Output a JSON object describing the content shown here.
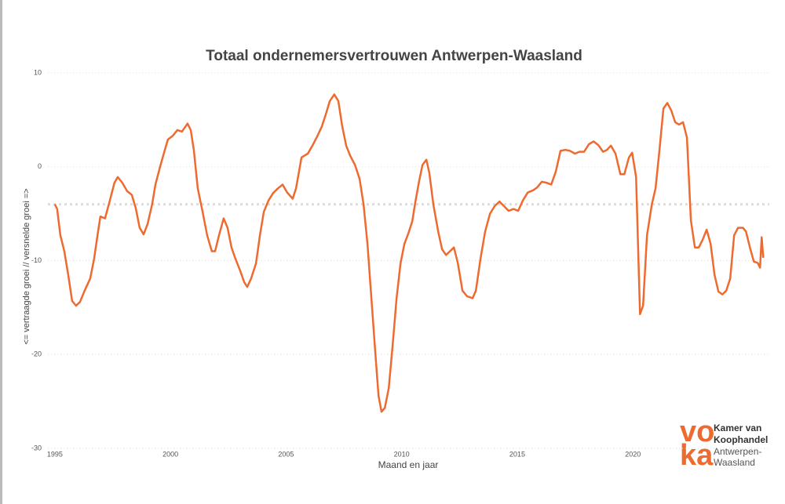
{
  "chart_data": {
    "type": "line",
    "title": "Totaal ondernemersvertrouwen Antwerpen-Waasland",
    "xlabel": "Maand en jaar",
    "ylabel": "<= vertraagde groei // versnelde groei =>",
    "x": [
      1995.0,
      1995.1,
      1995.24,
      1995.41,
      1995.58,
      1995.75,
      1995.92,
      1996.09,
      1996.29,
      1996.53,
      1996.7,
      1996.87,
      1996.97,
      1997.17,
      1997.38,
      1997.58,
      1997.72,
      1997.92,
      1998.13,
      1998.33,
      1998.5,
      1998.67,
      1998.84,
      1999.01,
      1999.21,
      1999.35,
      1999.55,
      1999.76,
      1999.89,
      2000.1,
      2000.3,
      2000.5,
      2000.74,
      2000.88,
      2001.01,
      2001.18,
      2001.39,
      2001.59,
      2001.79,
      2001.93,
      2002.1,
      2002.3,
      2002.47,
      2002.64,
      2002.81,
      2003.02,
      2003.19,
      2003.32,
      2003.49,
      2003.7,
      2003.87,
      2004.04,
      2004.24,
      2004.44,
      2004.65,
      2004.85,
      2005.05,
      2005.29,
      2005.43,
      2005.67,
      2005.94,
      2006.14,
      2006.35,
      2006.55,
      2006.72,
      2006.89,
      2007.09,
      2007.26,
      2007.43,
      2007.6,
      2007.77,
      2007.98,
      2008.18,
      2008.35,
      2008.52,
      2008.69,
      2008.86,
      2009.0,
      2009.13,
      2009.27,
      2009.44,
      2009.61,
      2009.78,
      2009.95,
      2010.12,
      2010.29,
      2010.46,
      2010.59,
      2010.76,
      2010.9,
      2011.07,
      2011.2,
      2011.37,
      2011.58,
      2011.75,
      2011.92,
      2012.09,
      2012.26,
      2012.43,
      2012.63,
      2012.83,
      2013.07,
      2013.21,
      2013.41,
      2013.61,
      2013.82,
      2014.02,
      2014.23,
      2014.43,
      2014.63,
      2014.84,
      2015.04,
      2015.24,
      2015.45,
      2015.69,
      2015.86,
      2016.06,
      2016.26,
      2016.47,
      2016.67,
      2016.87,
      2017.08,
      2017.28,
      2017.49,
      2017.69,
      2017.89,
      2018.1,
      2018.3,
      2018.51,
      2018.71,
      2018.88,
      2019.05,
      2019.25,
      2019.46,
      2019.63,
      2019.83,
      2019.97,
      2020.14,
      2020.31,
      2020.44,
      2020.61,
      2020.82,
      2020.98,
      2021.15,
      2021.32,
      2021.49,
      2021.66,
      2021.83,
      2022.0,
      2022.17,
      2022.34,
      2022.51,
      2022.68,
      2022.85,
      2023.02,
      2023.19,
      2023.36,
      2023.53,
      2023.7,
      2023.87,
      2024.04,
      2024.21,
      2024.38,
      2024.55,
      2024.76,
      2024.89,
      2025.06,
      2025.23,
      2025.4,
      2025.5,
      2025.57,
      2025.64
    ],
    "series": [
      {
        "color": "#ee6a2f",
        "values": [
          -4.0,
          -4.5,
          -7.3,
          -9.0,
          -11.5,
          -14.3,
          -14.8,
          -14.4,
          -13.2,
          -11.9,
          -9.8,
          -6.9,
          -5.3,
          -5.5,
          -3.6,
          -1.7,
          -1.1,
          -1.7,
          -2.6,
          -3.0,
          -4.4,
          -6.5,
          -7.2,
          -6.1,
          -4.0,
          -1.9,
          0,
          1.8,
          2.9,
          3.3,
          3.9,
          3.75,
          4.6,
          3.9,
          1.8,
          -2.3,
          -4.8,
          -7.3,
          -9.0,
          -9.0,
          -7.3,
          -5.5,
          -6.5,
          -8.6,
          -9.8,
          -11.1,
          -12.3,
          -12.8,
          -11.9,
          -10.3,
          -7.3,
          -4.8,
          -3.6,
          -2.8,
          -2.3,
          -1.9,
          -2.75,
          -3.4,
          -2.3,
          1.0,
          1.4,
          2.25,
          3.25,
          4.3,
          5.6,
          7.0,
          7.7,
          7.0,
          4.3,
          2.25,
          1.2,
          0.2,
          -1.3,
          -4.0,
          -8.2,
          -14.0,
          -19.8,
          -24.4,
          -26.1,
          -25.7,
          -23.6,
          -19.0,
          -14.0,
          -10.3,
          -8.2,
          -7.1,
          -5.8,
          -3.8,
          -1.5,
          0.2,
          0.75,
          -0.7,
          -4.0,
          -6.9,
          -8.8,
          -9.4,
          -9.0,
          -8.6,
          -10.25,
          -13.2,
          -13.8,
          -14.0,
          -13.2,
          -9.8,
          -6.9,
          -5.0,
          -4.2,
          -3.7,
          -4.2,
          -4.7,
          -4.5,
          -4.7,
          -3.6,
          -2.75,
          -2.5,
          -2.2,
          -1.6,
          -1.7,
          -1.9,
          -0.5,
          1.7,
          1.8,
          1.7,
          1.4,
          1.6,
          1.6,
          2.4,
          2.7,
          2.3,
          1.6,
          1.8,
          2.25,
          1.4,
          -0.8,
          -0.8,
          1.0,
          1.5,
          -1.1,
          -15.7,
          -14.8,
          -7.3,
          -4.0,
          -2.3,
          1.8,
          6.2,
          6.8,
          6.0,
          4.75,
          4.5,
          4.75,
          3.1,
          -5.7,
          -8.6,
          -8.6,
          -7.75,
          -6.7,
          -8.2,
          -11.5,
          -13.3,
          -13.6,
          -13.2,
          -11.9,
          -7.3,
          -6.5,
          -6.5,
          -6.9,
          -8.6,
          -10.1,
          -10.25,
          -10.75,
          -7.5,
          -9.7
        ]
      }
    ],
    "reference_line": -4,
    "xlim": [
      1994.7,
      2025.9
    ],
    "xticks": [
      1995,
      2000,
      2005,
      2010,
      2015,
      2020
    ],
    "ylim": [
      -30,
      10
    ],
    "yticks": [
      -30,
      -20,
      -10,
      0,
      10
    ],
    "grid": true
  },
  "logo": {
    "mark_top": "vo",
    "mark_bottom": "ka",
    "lines": [
      "Kamer van",
      "Koophandel",
      "Antwerpen-",
      "Waasland"
    ]
  }
}
